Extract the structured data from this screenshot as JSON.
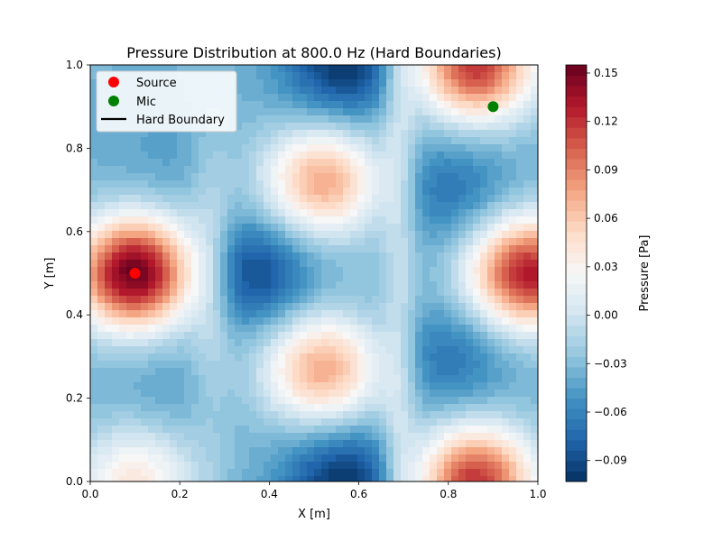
{
  "chart_data": {
    "type": "heatmap",
    "title": "Pressure Distribution at 800.0 Hz (Hard Boundaries)",
    "xlabel": "X [m]",
    "ylabel": "Y [m]",
    "xlim": [
      0,
      1
    ],
    "ylim": [
      0,
      1
    ],
    "xticks": [
      "0.0",
      "0.2",
      "0.4",
      "0.6",
      "0.8",
      "1.0"
    ],
    "yticks": [
      "0.0",
      "0.2",
      "0.4",
      "0.6",
      "0.8",
      "1.0"
    ],
    "colorbar": {
      "label": "Pressure [Pa]",
      "colormap": "RdBu_r",
      "vmin": -0.103,
      "vmax": 0.155,
      "ticks": [
        "−0.09",
        "−0.06",
        "−0.03",
        "0.00",
        "0.03",
        "0.06",
        "0.09",
        "0.12",
        "0.15"
      ],
      "tick_values": [
        -0.09,
        -0.06,
        -0.03,
        0.0,
        0.03,
        0.06,
        0.09,
        0.12,
        0.15
      ]
    },
    "grid": false,
    "legend": {
      "placement": "upper-left",
      "entries": [
        {
          "label": "Source",
          "marker": "circle",
          "color": "#ff0000"
        },
        {
          "label": "Mic",
          "marker": "circle",
          "color": "#008000"
        },
        {
          "label": "Hard Boundary",
          "marker": "line",
          "color": "#000000"
        }
      ]
    },
    "points": [
      {
        "name": "Source",
        "x": 0.1,
        "y": 0.5,
        "color": "#ff0000"
      },
      {
        "name": "Mic",
        "x": 0.9,
        "y": 0.9,
        "color": "#008000"
      }
    ],
    "field_features": [
      {
        "x": 0.1,
        "y": 0.5,
        "pressure": 0.155
      },
      {
        "x": 0.98,
        "y": 0.5,
        "pressure": 0.13
      },
      {
        "x": 0.86,
        "y": 0.0,
        "pressure": 0.12
      },
      {
        "x": 0.86,
        "y": 1.0,
        "pressure": 0.12
      },
      {
        "x": 0.52,
        "y": 0.72,
        "pressure": 0.075
      },
      {
        "x": 0.52,
        "y": 0.27,
        "pressure": 0.075
      },
      {
        "x": 0.1,
        "y": 0.0,
        "pressure": 0.04
      },
      {
        "x": 0.36,
        "y": 0.5,
        "pressure": -0.095
      },
      {
        "x": 0.57,
        "y": 1.0,
        "pressure": -0.103
      },
      {
        "x": 0.57,
        "y": 0.0,
        "pressure": -0.103
      },
      {
        "x": 0.8,
        "y": 0.7,
        "pressure": -0.07
      },
      {
        "x": 0.8,
        "y": 0.3,
        "pressure": -0.07
      },
      {
        "x": 0.17,
        "y": 0.77,
        "pressure": -0.045
      },
      {
        "x": 0.17,
        "y": 0.23,
        "pressure": -0.045
      }
    ]
  }
}
